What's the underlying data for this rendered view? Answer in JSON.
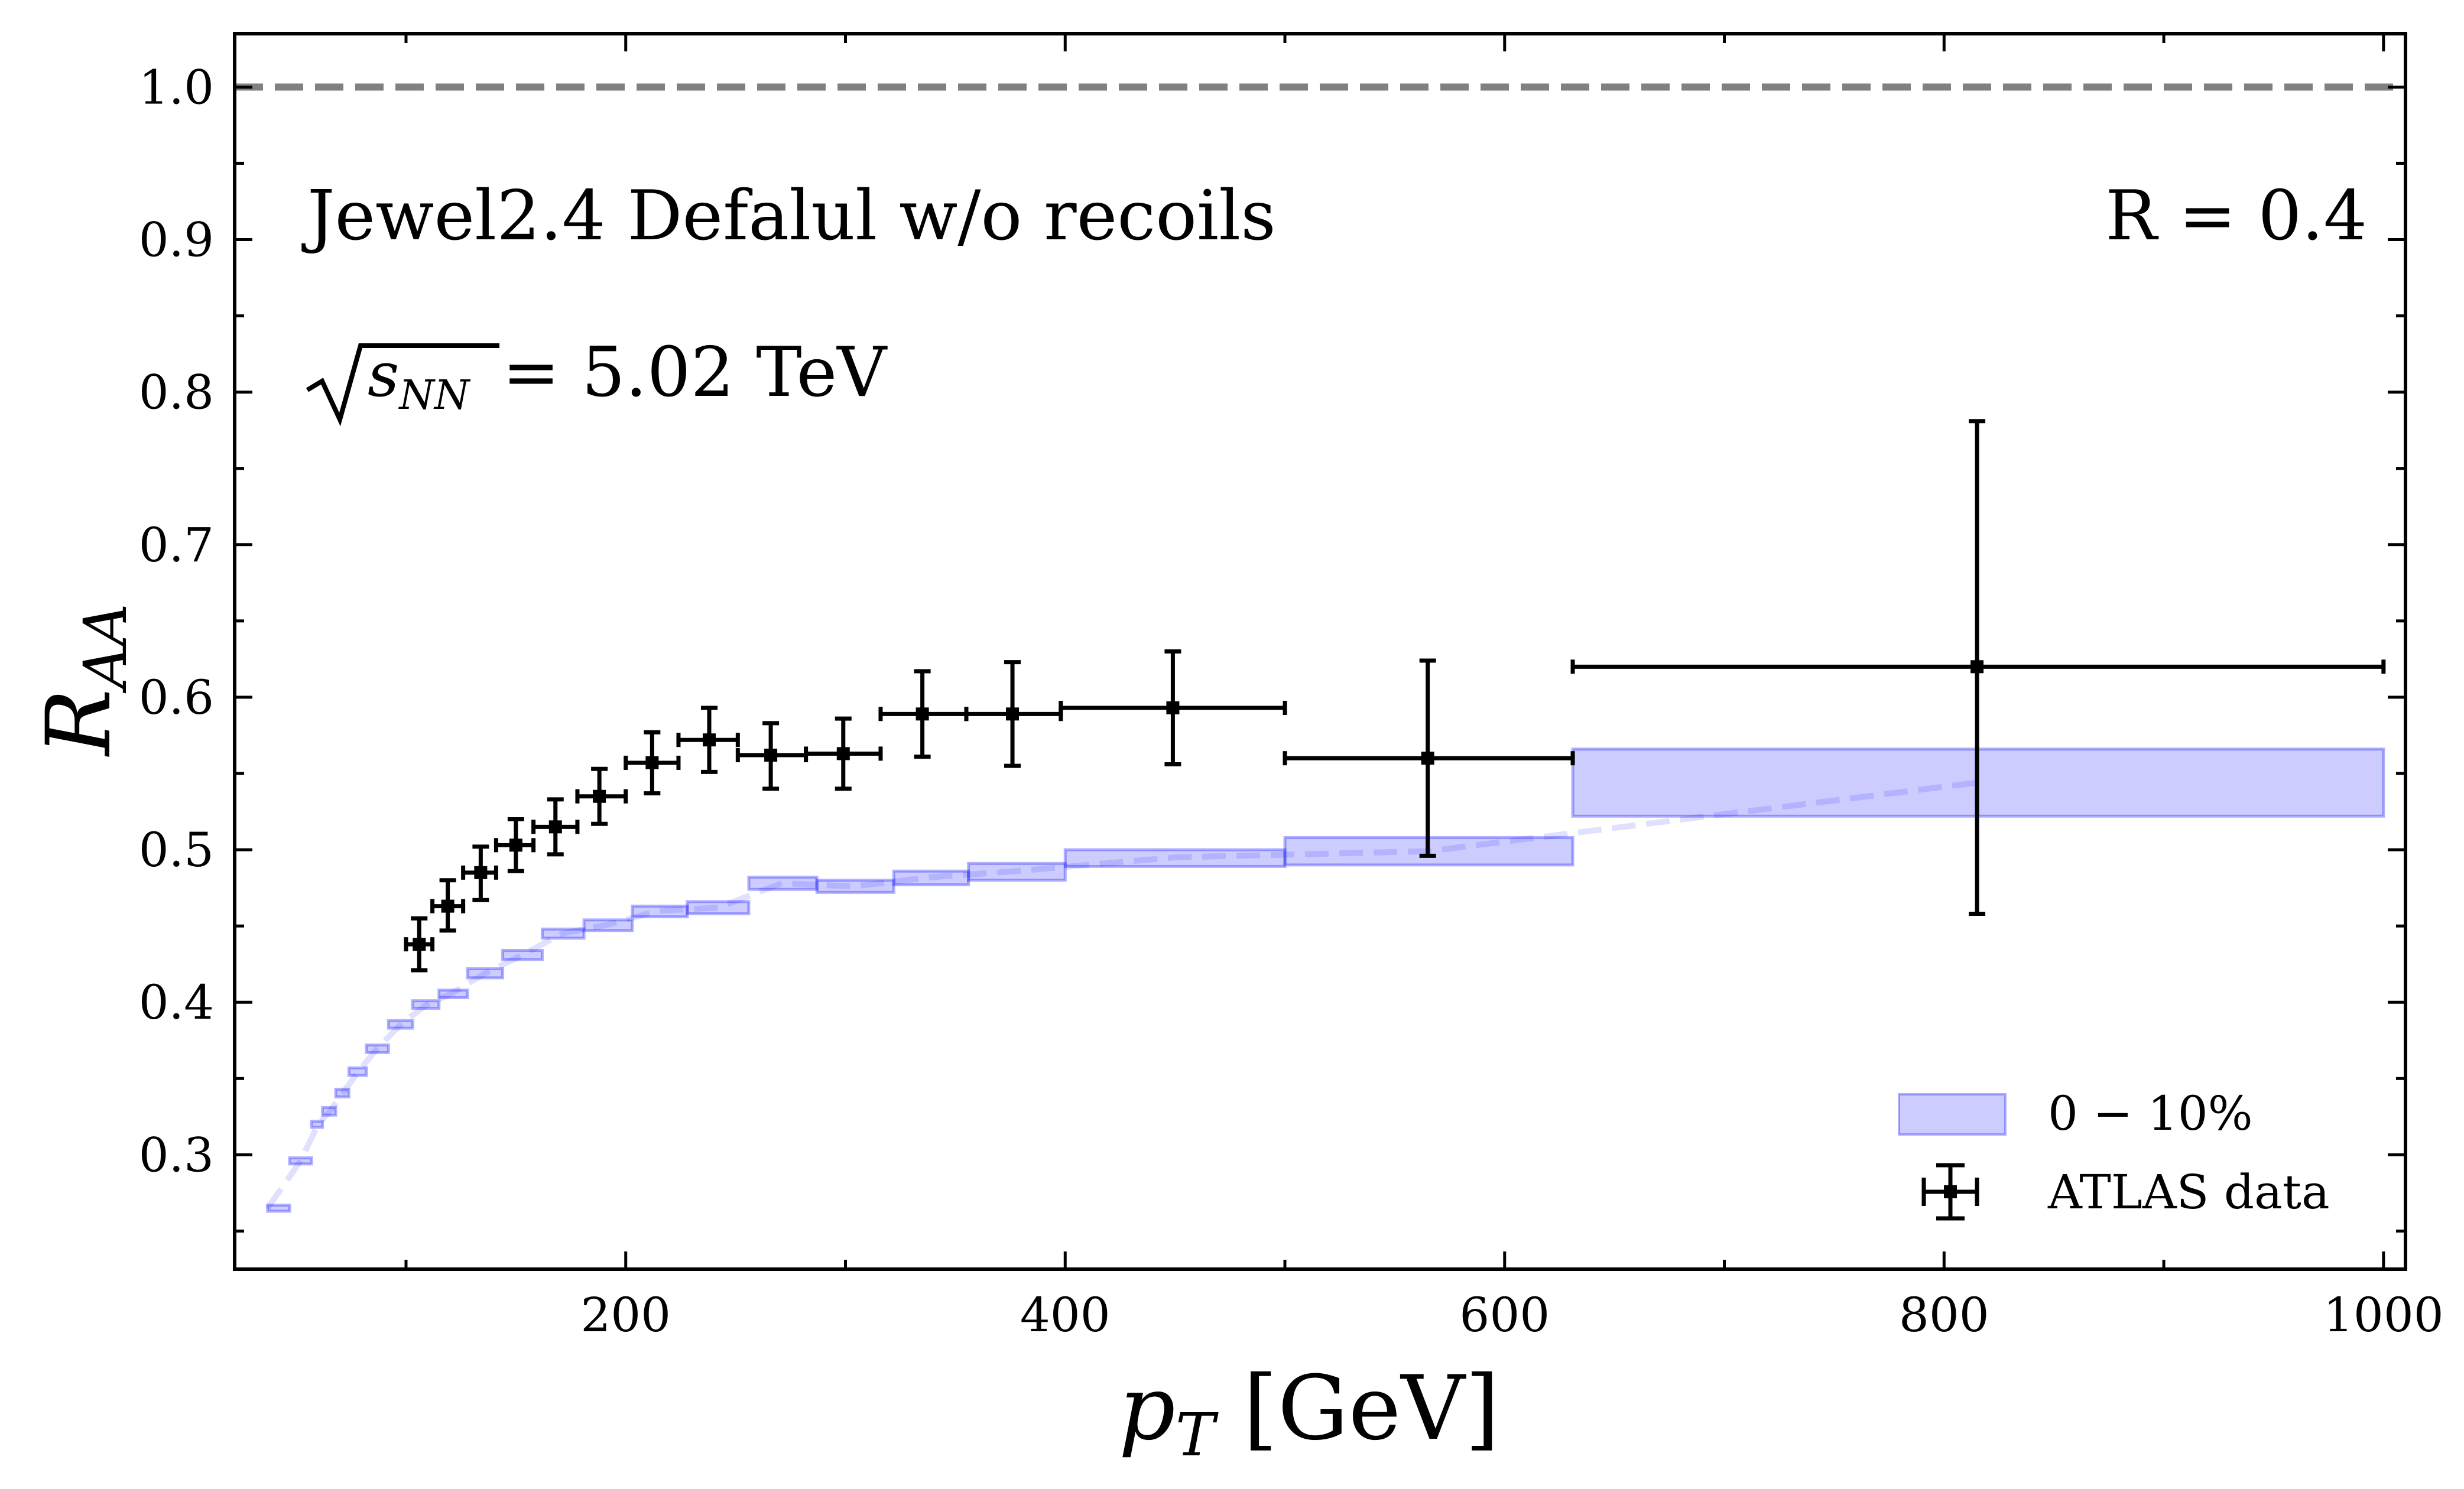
{
  "chart_data": {
    "type": "scatter",
    "title": "",
    "xlabel_main": "p",
    "xlabel_sub": "T",
    "xlabel_unit": " [GeV]",
    "ylabel_main": "R",
    "ylabel_sub": "AA",
    "xlim": [
      22,
      1010
    ],
    "ylim": [
      0.225,
      1.035
    ],
    "xticks": [
      200,
      400,
      600,
      800,
      1000
    ],
    "xtick_labels": [
      "200",
      "400",
      "600",
      "800",
      "1000"
    ],
    "yticks": [
      0.3,
      0.4,
      0.5,
      0.6,
      0.7,
      0.8,
      0.9,
      1.0
    ],
    "ytick_labels": [
      "0.3",
      "0.4",
      "0.5",
      "0.6",
      "0.7",
      "0.8",
      "0.9",
      "1.0"
    ],
    "reference_line": {
      "y": 1.0,
      "color": "#808080",
      "style": "dashed"
    },
    "annotations": {
      "model": "Jewel2.4 Defalul w/o recoils",
      "radius": "R = 0.4",
      "energy_base": "s",
      "energy_sub": "NN",
      "energy_value": " = 5.02 TeV"
    },
    "legend": {
      "placement": "bottom-right",
      "band_label": "0 − 10%",
      "data_label": "ATLAS data"
    },
    "colors": {
      "band": "#0000ff",
      "data": "#000000",
      "reference": "#808080"
    },
    "series": [
      {
        "name": "0 − 10%",
        "kind": "band",
        "bins": [
          {
            "x0": 37,
            "x1": 47,
            "lo": 0.263,
            "hi": 0.267
          },
          {
            "x0": 47,
            "x1": 57,
            "lo": 0.294,
            "hi": 0.298
          },
          {
            "x0": 57,
            "x1": 62,
            "lo": 0.318,
            "hi": 0.322
          },
          {
            "x0": 62,
            "x1": 68,
            "lo": 0.326,
            "hi": 0.331
          },
          {
            "x0": 68,
            "x1": 74,
            "lo": 0.338,
            "hi": 0.343
          },
          {
            "x0": 74,
            "x1": 82,
            "lo": 0.352,
            "hi": 0.357
          },
          {
            "x0": 82,
            "x1": 92,
            "lo": 0.367,
            "hi": 0.372
          },
          {
            "x0": 92,
            "x1": 103,
            "lo": 0.383,
            "hi": 0.388
          },
          {
            "x0": 103,
            "x1": 115,
            "lo": 0.396,
            "hi": 0.401
          },
          {
            "x0": 115,
            "x1": 128,
            "lo": 0.403,
            "hi": 0.408
          },
          {
            "x0": 128,
            "x1": 144,
            "lo": 0.416,
            "hi": 0.422
          },
          {
            "x0": 144,
            "x1": 162,
            "lo": 0.428,
            "hi": 0.434
          },
          {
            "x0": 162,
            "x1": 181,
            "lo": 0.442,
            "hi": 0.448
          },
          {
            "x0": 181,
            "x1": 203,
            "lo": 0.447,
            "hi": 0.454
          },
          {
            "x0": 203,
            "x1": 228,
            "lo": 0.456,
            "hi": 0.463
          },
          {
            "x0": 228,
            "x1": 256,
            "lo": 0.458,
            "hi": 0.466
          },
          {
            "x0": 256,
            "x1": 287,
            "lo": 0.474,
            "hi": 0.482
          },
          {
            "x0": 287,
            "x1": 322,
            "lo": 0.472,
            "hi": 0.48
          },
          {
            "x0": 322,
            "x1": 356,
            "lo": 0.477,
            "hi": 0.486
          },
          {
            "x0": 356,
            "x1": 400,
            "lo": 0.48,
            "hi": 0.491
          },
          {
            "x0": 400,
            "x1": 500,
            "lo": 0.489,
            "hi": 0.5
          },
          {
            "x0": 500,
            "x1": 631,
            "lo": 0.49,
            "hi": 0.508
          },
          {
            "x0": 631,
            "x1": 1000,
            "lo": 0.522,
            "hi": 0.566
          }
        ],
        "trend_x": [
          37,
          52,
          60,
          65,
          71,
          78,
          87,
          98,
          109,
          121,
          136,
          153,
          171,
          192,
          215,
          242,
          271,
          304,
          339,
          378,
          450,
          565,
          815
        ],
        "trend_y": [
          0.265,
          0.296,
          0.32,
          0.328,
          0.34,
          0.354,
          0.37,
          0.386,
          0.398,
          0.406,
          0.419,
          0.431,
          0.445,
          0.451,
          0.46,
          0.462,
          0.478,
          0.476,
          0.482,
          0.486,
          0.495,
          0.499,
          0.544
        ]
      },
      {
        "name": "ATLAS data",
        "kind": "errorbar",
        "points": [
          {
            "x": 106,
            "xlo": 100,
            "xhi": 112,
            "y": 0.438,
            "ylo": 0.421,
            "yhi": 0.455
          },
          {
            "x": 119,
            "xlo": 112,
            "xhi": 126,
            "y": 0.463,
            "ylo": 0.447,
            "yhi": 0.48
          },
          {
            "x": 134,
            "xlo": 126,
            "xhi": 141,
            "y": 0.485,
            "ylo": 0.467,
            "yhi": 0.502
          },
          {
            "x": 150,
            "xlo": 141,
            "xhi": 158,
            "y": 0.503,
            "ylo": 0.486,
            "yhi": 0.52
          },
          {
            "x": 168,
            "xlo": 158,
            "xhi": 178,
            "y": 0.515,
            "ylo": 0.497,
            "yhi": 0.533
          },
          {
            "x": 188,
            "xlo": 178,
            "xhi": 200,
            "y": 0.535,
            "ylo": 0.517,
            "yhi": 0.553
          },
          {
            "x": 212,
            "xlo": 200,
            "xhi": 224,
            "y": 0.557,
            "ylo": 0.537,
            "yhi": 0.577
          },
          {
            "x": 238,
            "xlo": 224,
            "xhi": 251,
            "y": 0.572,
            "ylo": 0.551,
            "yhi": 0.593
          },
          {
            "x": 266,
            "xlo": 251,
            "xhi": 282,
            "y": 0.562,
            "ylo": 0.54,
            "yhi": 0.583
          },
          {
            "x": 299,
            "xlo": 282,
            "xhi": 316,
            "y": 0.563,
            "ylo": 0.54,
            "yhi": 0.586
          },
          {
            "x": 335,
            "xlo": 316,
            "xhi": 355,
            "y": 0.589,
            "ylo": 0.561,
            "yhi": 0.617
          },
          {
            "x": 376,
            "xlo": 355,
            "xhi": 398,
            "y": 0.589,
            "ylo": 0.555,
            "yhi": 0.623
          },
          {
            "x": 449,
            "xlo": 398,
            "xhi": 500,
            "y": 0.593,
            "ylo": 0.556,
            "yhi": 0.63
          },
          {
            "x": 565,
            "xlo": 500,
            "xhi": 631,
            "y": 0.56,
            "ylo": 0.496,
            "yhi": 0.624
          },
          {
            "x": 815,
            "xlo": 631,
            "xhi": 1000,
            "y": 0.62,
            "ylo": 0.458,
            "yhi": 0.781
          }
        ]
      }
    ]
  }
}
